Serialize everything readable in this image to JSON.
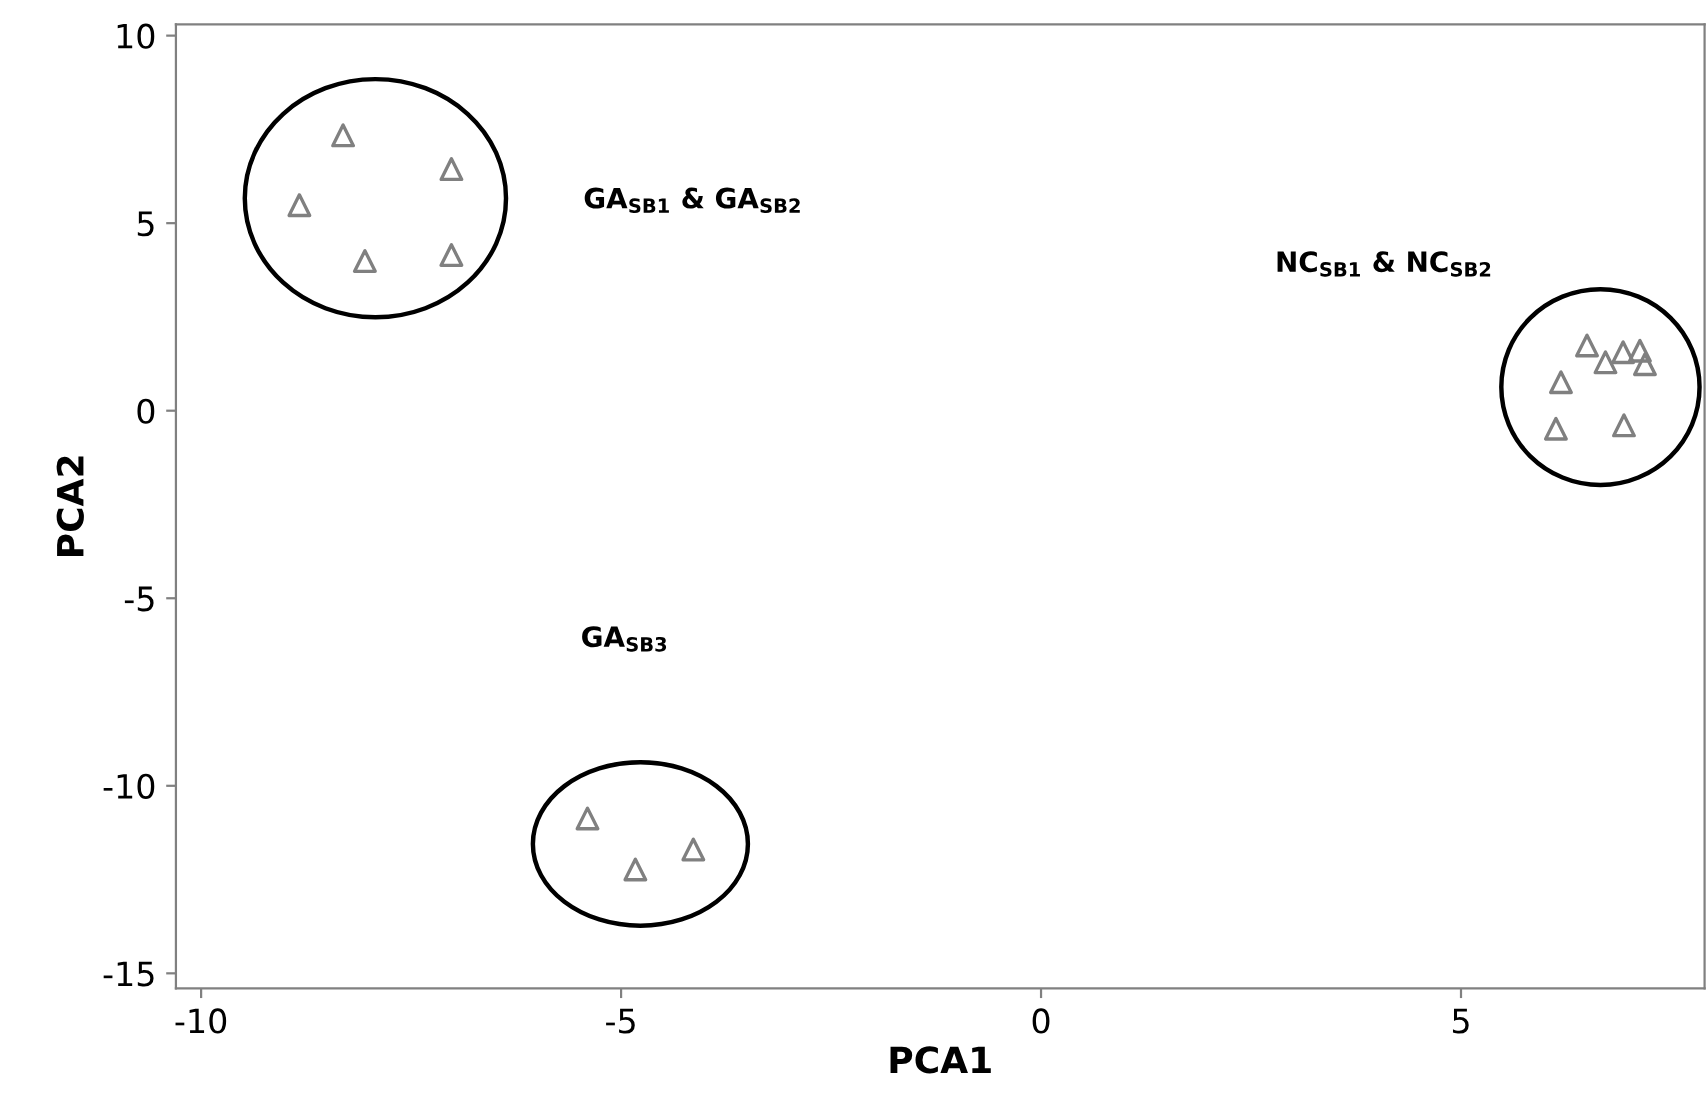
{
  "chart_data": {
    "type": "scatter",
    "xlabel": "PCA1",
    "ylabel": "PCA2",
    "xlim": [
      -10.3,
      7.9
    ],
    "ylim": [
      -15.4,
      10.3
    ],
    "xticks": [
      -10,
      -5,
      0,
      5
    ],
    "yticks": [
      -15,
      -10,
      -5,
      0,
      5,
      10
    ],
    "grid": false,
    "marker": "triangle",
    "series": [
      {
        "color": "#808080",
        "x": [
          -8.83,
          -8.31,
          -7.02,
          -8.05,
          -7.02
        ],
        "values": [
          5.48,
          7.34,
          6.44,
          3.99,
          4.15
        ]
      },
      {
        "color": "#808080",
        "x": [
          6.5,
          6.93,
          7.13,
          6.72,
          7.19,
          6.19,
          6.13,
          6.94
        ],
        "values": [
          1.74,
          1.56,
          1.6,
          1.29,
          1.24,
          0.76,
          -0.48,
          -0.39
        ]
      },
      {
        "color": "#808080",
        "x": [
          -5.4,
          -4.83,
          -4.14
        ],
        "values": [
          -10.87,
          -12.23,
          -11.7
        ]
      }
    ],
    "annotations": [
      "GA$_{SB1}$ & GA$_{SB2}$",
      "NC$_{SB1}$ & NC$_{SB2}$",
      "GA$_{SB3}$"
    ]
  }
}
